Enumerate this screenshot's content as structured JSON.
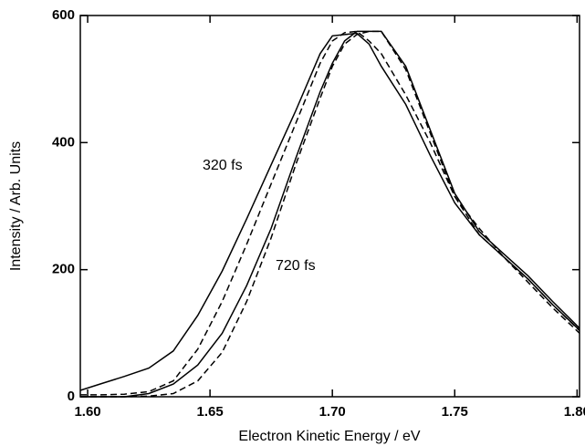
{
  "chart_data": {
    "type": "line",
    "x_label": "Electron Kinetic Energy / eV",
    "y_label": "Intensity / Arb. Units",
    "annotations": [
      "320 fs",
      "720 fs"
    ],
    "x": [
      1.597,
      1.605,
      1.615,
      1.625,
      1.635,
      1.645,
      1.655,
      1.665,
      1.675,
      1.685,
      1.695,
      1.7,
      1.705,
      1.71,
      1.715,
      1.72,
      1.73,
      1.74,
      1.75,
      1.76,
      1.77,
      1.78,
      1.79,
      1.801
    ],
    "series": [
      {
        "color": "#000000",
        "style": "solid",
        "values": [
          10,
          20,
          32,
          45,
          72,
          128,
          198,
          280,
          365,
          450,
          540,
          568,
          570,
          572,
          555,
          520,
          460,
          380,
          305,
          255,
          220,
          185,
          145,
          105
        ]
      },
      {
        "color": "#000000",
        "style": "dashed",
        "values": [
          3,
          3,
          4,
          8,
          25,
          75,
          150,
          240,
          335,
          430,
          525,
          560,
          573,
          575,
          560,
          540,
          475,
          400,
          315,
          265,
          220,
          180,
          140,
          100
        ]
      },
      {
        "color": "#000000",
        "style": "solid",
        "values": [
          0,
          0,
          0,
          5,
          20,
          50,
          100,
          175,
          265,
          375,
          480,
          525,
          560,
          575,
          575,
          575,
          520,
          420,
          320,
          260,
          225,
          190,
          150,
          108
        ]
      },
      {
        "color": "#000000",
        "style": "dashed",
        "values": [
          0,
          0,
          0,
          1,
          5,
          25,
          70,
          150,
          250,
          365,
          470,
          520,
          555,
          570,
          575,
          575,
          515,
          415,
          315,
          255,
          220,
          185,
          145,
          104
        ]
      }
    ],
    "xlim": [
      1.597,
      1.801
    ],
    "ylim": [
      0,
      600
    ],
    "xticks": [
      {
        "value": 1.6,
        "label": "1.60"
      },
      {
        "value": 1.65,
        "label": "1.65"
      },
      {
        "value": 1.7,
        "label": "1.70"
      },
      {
        "value": 1.75,
        "label": "1.75"
      },
      {
        "value": 1.8,
        "label": "1.80"
      }
    ],
    "yticks": [
      0,
      200,
      400,
      600
    ],
    "grid": false
  }
}
